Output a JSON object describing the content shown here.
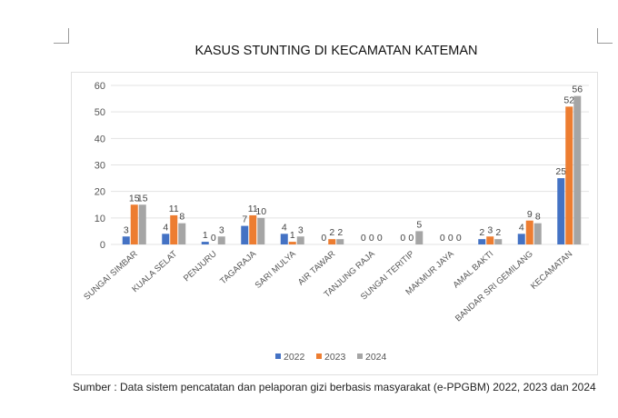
{
  "chart_data": {
    "type": "bar",
    "title": "KASUS STUNTING DI KECAMATAN KATEMAN",
    "categories": [
      "SUNGAI SIMBAR",
      "KUALA SELAT",
      "PENJURU",
      "TAGARAJA",
      "SARI MULYA",
      "AIR TAWAR",
      "TANJUNG RAJA",
      "SUNGAI TERITIP",
      "MAKMUR JAYA",
      "AMAL BAKTI",
      "BANDAR SRI GEMILANG",
      "KECAMATAN"
    ],
    "series": [
      {
        "name": "2022",
        "color": "#4472C4",
        "values": [
          3,
          4,
          1,
          7,
          4,
          0,
          0,
          0,
          0,
          2,
          4,
          25
        ]
      },
      {
        "name": "2023",
        "color": "#ED7D31",
        "values": [
          15,
          11,
          0,
          11,
          1,
          2,
          0,
          0,
          0,
          3,
          9,
          52
        ]
      },
      {
        "name": "2024",
        "color": "#A5A5A5",
        "values": [
          15,
          8,
          3,
          10,
          3,
          2,
          0,
          5,
          0,
          2,
          8,
          56
        ]
      }
    ],
    "ylim": [
      0,
      60
    ],
    "yticks": [
      0,
      10,
      20,
      30,
      40,
      50,
      60
    ],
    "grid": true,
    "legend": "bottom",
    "xlabel": "",
    "ylabel": ""
  },
  "caption": "Sumber : Data sistem pencatatan dan pelaporan gizi berbasis masyarakat (e-PPGBM) 2022, 2023 dan 2024"
}
